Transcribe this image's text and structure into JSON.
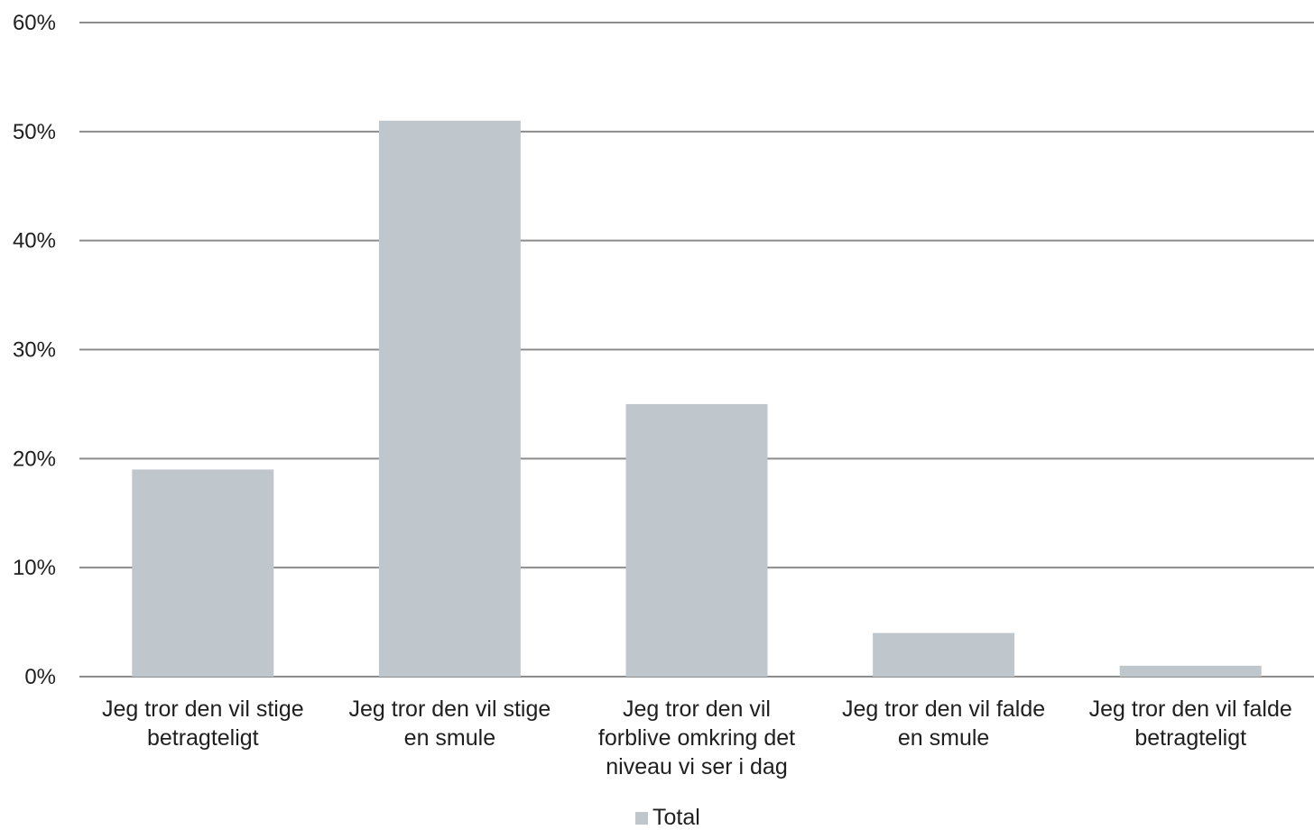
{
  "chart_data": {
    "type": "bar",
    "categories": [
      [
        "Jeg tror den vil stige",
        "betragteligt"
      ],
      [
        "Jeg tror den vil stige",
        "en smule"
      ],
      [
        "Jeg tror den vil",
        "forblive omkring det",
        "niveau vi ser i dag"
      ],
      [
        "Jeg tror den vil falde",
        "en smule"
      ],
      [
        "Jeg tror den vil falde",
        "betragteligt"
      ]
    ],
    "series": [
      {
        "name": "Total",
        "values": [
          19,
          51,
          25,
          4,
          1
        ],
        "color": "#bfc7cd"
      }
    ],
    "yticks": [
      "0%",
      "10%",
      "20%",
      "30%",
      "40%",
      "50%",
      "60%"
    ],
    "ylim": [
      0,
      60
    ],
    "grid": true,
    "gridline_color": "#8c8c8c",
    "legend_position": "bottom"
  }
}
